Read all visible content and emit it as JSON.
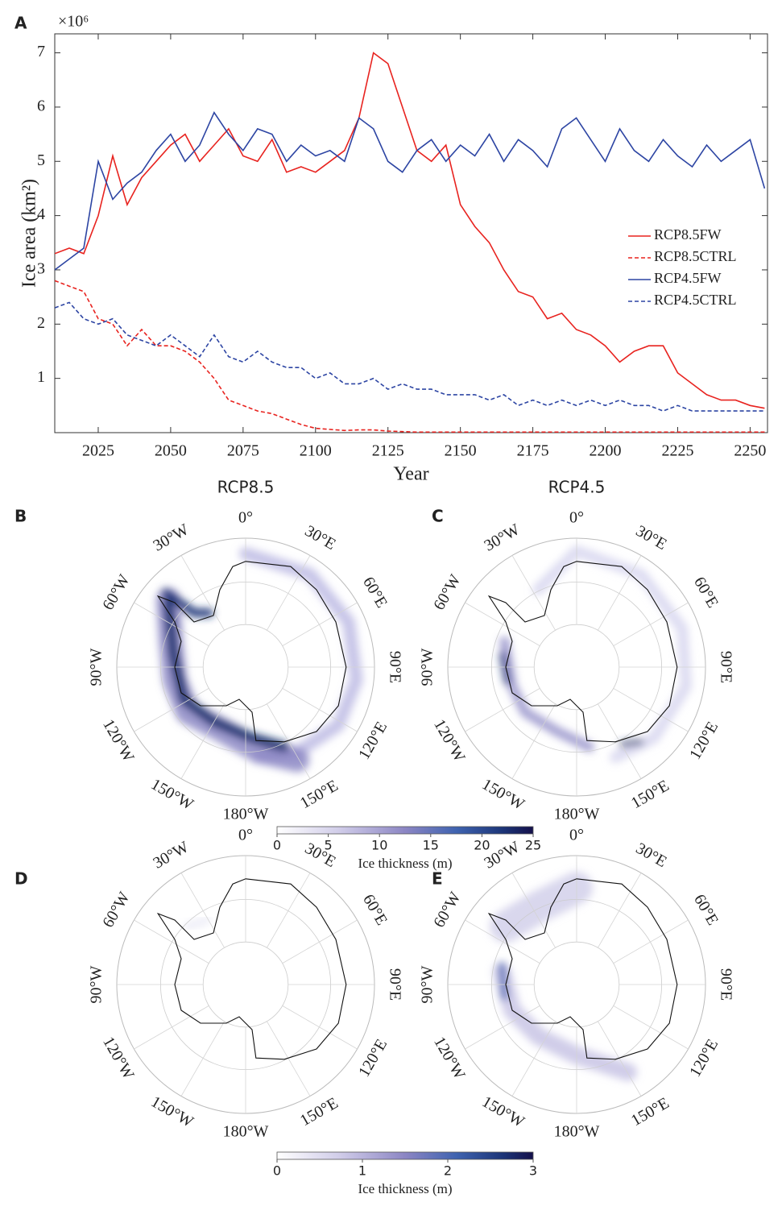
{
  "panel_labels": [
    "A",
    "B",
    "C",
    "D",
    "E"
  ],
  "chart_data": {
    "type": "line",
    "x": [
      2010,
      2015,
      2020,
      2025,
      2030,
      2035,
      2040,
      2045,
      2050,
      2055,
      2060,
      2065,
      2070,
      2075,
      2080,
      2085,
      2090,
      2095,
      2100,
      2105,
      2110,
      2115,
      2120,
      2125,
      2130,
      2135,
      2140,
      2145,
      2150,
      2155,
      2160,
      2165,
      2170,
      2175,
      2180,
      2185,
      2190,
      2195,
      2200,
      2205,
      2210,
      2215,
      2220,
      2225,
      2230,
      2235,
      2240,
      2245,
      2250,
      2255
    ],
    "series": [
      {
        "name": "RCP8.5FW",
        "color": "#e8231f",
        "dashed": false,
        "values": [
          3.3,
          3.4,
          3.3,
          4.0,
          5.1,
          4.2,
          4.7,
          5.0,
          5.3,
          5.5,
          5.0,
          5.3,
          5.6,
          5.1,
          5.0,
          5.4,
          4.8,
          4.9,
          4.8,
          5.0,
          5.2,
          5.8,
          7.0,
          6.8,
          6.0,
          5.2,
          5.0,
          5.3,
          4.2,
          3.8,
          3.5,
          3.0,
          2.6,
          2.5,
          2.1,
          2.2,
          1.9,
          1.8,
          1.6,
          1.3,
          1.5,
          1.6,
          1.6,
          1.1,
          0.9,
          0.7,
          0.6,
          0.6,
          0.5,
          0.45
        ]
      },
      {
        "name": "RCP8.5CTRL",
        "color": "#e8231f",
        "dashed": true,
        "values": [
          2.8,
          2.7,
          2.6,
          2.1,
          2.0,
          1.6,
          1.9,
          1.6,
          1.6,
          1.5,
          1.3,
          1.0,
          0.6,
          0.5,
          0.4,
          0.35,
          0.25,
          0.15,
          0.08,
          0.06,
          0.04,
          0.05,
          0.05,
          0.03,
          0.02,
          0.01,
          0.01,
          0.01,
          0.01,
          0.01,
          0.01,
          0.01,
          0.01,
          0.01,
          0.01,
          0.01,
          0.01,
          0.01,
          0.01,
          0.01,
          0.01,
          0.01,
          0.01,
          0.01,
          0.01,
          0.01,
          0.01,
          0.01,
          0.01,
          0.01
        ]
      },
      {
        "name": "RCP4.5FW",
        "color": "#2d45a3",
        "dashed": false,
        "values": [
          3.0,
          3.2,
          3.4,
          5.0,
          4.3,
          4.6,
          4.8,
          5.2,
          5.5,
          5.0,
          5.3,
          5.9,
          5.5,
          5.2,
          5.6,
          5.5,
          5.0,
          5.3,
          5.1,
          5.2,
          5.0,
          5.8,
          5.6,
          5.0,
          4.8,
          5.2,
          5.4,
          5.0,
          5.3,
          5.1,
          5.5,
          5.0,
          5.4,
          5.2,
          4.9,
          5.6,
          5.8,
          5.4,
          5.0,
          5.6,
          5.2,
          5.0,
          5.4,
          5.1,
          4.9,
          5.3,
          5.0,
          5.2,
          5.4,
          4.5
        ]
      },
      {
        "name": "RCP4.5CTRL",
        "color": "#2d45a3",
        "dashed": true,
        "values": [
          2.3,
          2.4,
          2.1,
          2.0,
          2.1,
          1.8,
          1.7,
          1.6,
          1.8,
          1.6,
          1.4,
          1.8,
          1.4,
          1.3,
          1.5,
          1.3,
          1.2,
          1.2,
          1.0,
          1.1,
          0.9,
          0.9,
          1.0,
          0.8,
          0.9,
          0.8,
          0.8,
          0.7,
          0.7,
          0.7,
          0.6,
          0.7,
          0.5,
          0.6,
          0.5,
          0.6,
          0.5,
          0.6,
          0.5,
          0.6,
          0.5,
          0.5,
          0.4,
          0.5,
          0.4,
          0.4,
          0.4,
          0.4,
          0.4,
          0.4
        ]
      }
    ],
    "xlim": [
      2010,
      2256
    ],
    "ylim": [
      0,
      7.35
    ],
    "xticks": [
      2025,
      2050,
      2075,
      2100,
      2125,
      2150,
      2175,
      2200,
      2225,
      2250
    ],
    "yticks": [
      1,
      2,
      3,
      4,
      5,
      6,
      7
    ],
    "xlabel": "Year",
    "ylabel": "Ice area (km²)",
    "y_multiplier": "×10⁶",
    "legend": "right",
    "box": true
  },
  "column_titles": [
    "RCP8.5",
    "RCP4.5"
  ],
  "map_labels": [
    "0°",
    "30°E",
    "60°E",
    "90°E",
    "120°E",
    "150°E",
    "180°W",
    "150°W",
    "120°W",
    "90°W",
    "60°W",
    "30°W"
  ],
  "colorbars": [
    {
      "lim": [
        0,
        25
      ],
      "ticks": [
        0,
        5,
        10,
        15,
        20,
        25
      ],
      "label": "Ice thickness (m)"
    },
    {
      "lim": [
        0,
        3
      ],
      "ticks": [
        0,
        1,
        2,
        3
      ],
      "label": "Ice thickness (m)"
    }
  ]
}
